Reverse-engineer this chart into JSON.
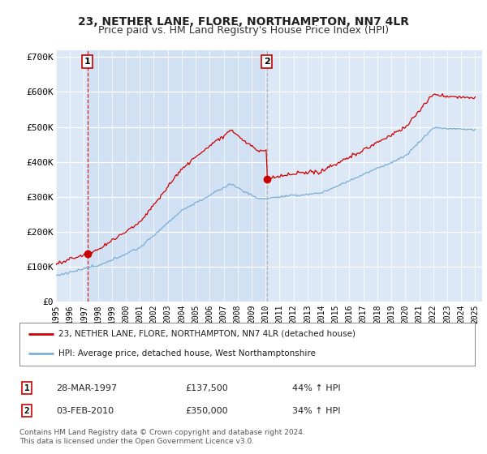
{
  "title": "23, NETHER LANE, FLORE, NORTHAMPTON, NN7 4LR",
  "subtitle": "Price paid vs. HM Land Registry's House Price Index (HPI)",
  "ylim": [
    0,
    720000
  ],
  "xlim_start": 1995.0,
  "xlim_end": 2025.5,
  "bg_color": "#ffffff",
  "plot_bg_color": "#dce8f5",
  "grid_color": "#ffffff",
  "sale1_x": 1997.24,
  "sale1_y": 137500,
  "sale2_x": 2010.09,
  "sale2_y": 350000,
  "legend_line1": "23, NETHER LANE, FLORE, NORTHAMPTON, NN7 4LR (detached house)",
  "legend_line2": "HPI: Average price, detached house, West Northamptonshire",
  "footer": "Contains HM Land Registry data © Crown copyright and database right 2024.\nThis data is licensed under the Open Government Licence v3.0.",
  "line_color_red": "#cc0000",
  "line_color_blue": "#7bafd4",
  "dashed_color_red": "#cc0000",
  "dashed_color_grey": "#aaaaaa",
  "title_fontsize": 10,
  "subtitle_fontsize": 9
}
